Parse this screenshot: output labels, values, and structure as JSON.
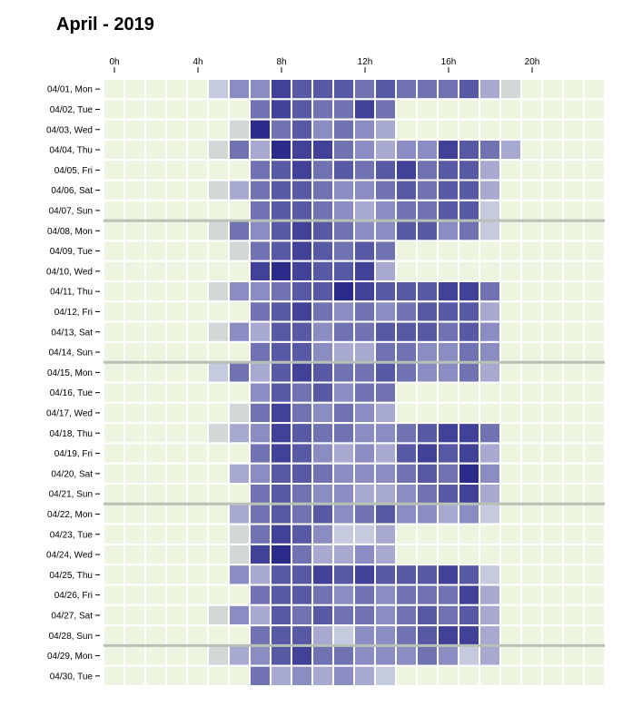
{
  "title": "April - 2019",
  "colors": {
    "empty": "#edf5e1",
    "scale": [
      "#d2d8d8",
      "#c6cadf",
      "#a7a9d1",
      "#8b8dc2",
      "#7072b1",
      "#5759a4",
      "#414297",
      "#2b2c8a",
      "#1b1a7e"
    ],
    "week_separator": "#b9c1b7",
    "grid_line": "#ffffff"
  },
  "chart_data": {
    "type": "heatmap",
    "title": "April - 2019",
    "x_tick_labels": [
      "0h",
      "4h",
      "8h",
      "12h",
      "16h",
      "20h"
    ],
    "x_tick_hours": [
      0,
      4,
      8,
      12,
      16,
      20
    ],
    "hours": [
      0,
      1,
      2,
      3,
      4,
      5,
      6,
      7,
      8,
      9,
      10,
      11,
      12,
      13,
      14,
      15,
      16,
      17,
      18,
      19,
      20,
      21,
      22,
      23
    ],
    "y_labels": [
      "04/01, Mon",
      "04/02, Tue",
      "04/03, Wed",
      "04/04, Thu",
      "04/05, Fri",
      "04/06, Sat",
      "04/07, Sun",
      "04/08, Mon",
      "04/09, Tue",
      "04/10, Wed",
      "04/11, Thu",
      "04/12, Fri",
      "04/13, Sat",
      "04/14, Sun",
      "04/15, Mon",
      "04/16, Tue",
      "04/17, Wed",
      "04/18, Thu",
      "04/19, Fri",
      "04/20, Sat",
      "04/21, Sun",
      "04/22, Mon",
      "04/23, Tue",
      "04/24, Wed",
      "04/25, Thu",
      "04/26, Fri",
      "04/27, Sat",
      "04/28, Sun",
      "04/29, Mon",
      "04/30, Tue"
    ],
    "week_separators_after_rows": [
      6,
      13,
      20,
      27
    ],
    "value_range": [
      0,
      9
    ],
    "values": [
      [
        0,
        0,
        0,
        0,
        0,
        2,
        4,
        4,
        7,
        6,
        6,
        6,
        5,
        6,
        5,
        5,
        5,
        6,
        3,
        1,
        0,
        0,
        0,
        0
      ],
      [
        0,
        0,
        0,
        0,
        0,
        0,
        0,
        5,
        7,
        6,
        5,
        5,
        7,
        5,
        0,
        0,
        0,
        0,
        0,
        0,
        0,
        0,
        0,
        0
      ],
      [
        0,
        0,
        0,
        0,
        0,
        0,
        1,
        8,
        5,
        6,
        4,
        5,
        4,
        3,
        0,
        0,
        0,
        0,
        0,
        0,
        0,
        0,
        0,
        0
      ],
      [
        0,
        0,
        0,
        0,
        0,
        1,
        5,
        3,
        8,
        7,
        7,
        5,
        4,
        3,
        4,
        4,
        7,
        6,
        5,
        3,
        0,
        0,
        0,
        0
      ],
      [
        0,
        0,
        0,
        0,
        0,
        0,
        0,
        5,
        6,
        7,
        5,
        6,
        5,
        6,
        7,
        5,
        6,
        6,
        3,
        0,
        0,
        0,
        0,
        0
      ],
      [
        0,
        0,
        0,
        0,
        0,
        1,
        3,
        5,
        6,
        6,
        5,
        4,
        4,
        5,
        6,
        5,
        6,
        6,
        3,
        0,
        0,
        0,
        0,
        0
      ],
      [
        0,
        0,
        0,
        0,
        0,
        0,
        0,
        5,
        6,
        6,
        5,
        4,
        3,
        4,
        5,
        5,
        6,
        6,
        2,
        0,
        0,
        0,
        0,
        0
      ],
      [
        0,
        0,
        0,
        0,
        0,
        1,
        5,
        4,
        6,
        7,
        6,
        5,
        4,
        4,
        6,
        6,
        4,
        5,
        2,
        0,
        0,
        0,
        0,
        0
      ],
      [
        0,
        0,
        0,
        0,
        0,
        0,
        1,
        5,
        6,
        7,
        6,
        5,
        6,
        5,
        0,
        0,
        0,
        0,
        0,
        0,
        0,
        0,
        0,
        0
      ],
      [
        0,
        0,
        0,
        0,
        0,
        0,
        0,
        7,
        8,
        7,
        6,
        6,
        7,
        3,
        0,
        0,
        0,
        0,
        0,
        0,
        0,
        0,
        0,
        0
      ],
      [
        0,
        0,
        0,
        0,
        0,
        1,
        4,
        4,
        5,
        6,
        6,
        8,
        7,
        6,
        6,
        6,
        7,
        7,
        5,
        0,
        0,
        0,
        0,
        0
      ],
      [
        0,
        0,
        0,
        0,
        0,
        0,
        0,
        5,
        6,
        7,
        5,
        4,
        5,
        4,
        5,
        6,
        6,
        6,
        3,
        0,
        0,
        0,
        0,
        0
      ],
      [
        0,
        0,
        0,
        0,
        0,
        1,
        4,
        3,
        6,
        6,
        4,
        5,
        5,
        6,
        6,
        6,
        5,
        6,
        4,
        0,
        0,
        0,
        0,
        0
      ],
      [
        0,
        0,
        0,
        0,
        0,
        0,
        0,
        5,
        6,
        6,
        4,
        3,
        3,
        5,
        5,
        4,
        4,
        5,
        4,
        0,
        0,
        0,
        0,
        0
      ],
      [
        0,
        0,
        0,
        0,
        0,
        2,
        5,
        3,
        6,
        7,
        6,
        5,
        5,
        6,
        5,
        4,
        4,
        5,
        3,
        0,
        0,
        0,
        0,
        0
      ],
      [
        0,
        0,
        0,
        0,
        0,
        0,
        0,
        4,
        6,
        5,
        6,
        4,
        5,
        5,
        0,
        0,
        0,
        0,
        0,
        0,
        0,
        0,
        0,
        0
      ],
      [
        0,
        0,
        0,
        0,
        0,
        0,
        1,
        5,
        7,
        5,
        4,
        5,
        4,
        3,
        0,
        0,
        0,
        0,
        0,
        0,
        0,
        0,
        0,
        0
      ],
      [
        0,
        0,
        0,
        0,
        0,
        1,
        3,
        4,
        7,
        6,
        5,
        5,
        4,
        4,
        5,
        6,
        7,
        7,
        5,
        0,
        0,
        0,
        0,
        0
      ],
      [
        0,
        0,
        0,
        0,
        0,
        0,
        0,
        5,
        7,
        6,
        4,
        3,
        4,
        3,
        6,
        7,
        6,
        7,
        3,
        0,
        0,
        0,
        0,
        0
      ],
      [
        0,
        0,
        0,
        0,
        0,
        0,
        3,
        4,
        6,
        6,
        5,
        4,
        4,
        4,
        5,
        6,
        5,
        8,
        4,
        0,
        0,
        0,
        0,
        0
      ],
      [
        0,
        0,
        0,
        0,
        0,
        0,
        0,
        5,
        6,
        5,
        4,
        4,
        3,
        3,
        4,
        5,
        6,
        7,
        3,
        0,
        0,
        0,
        0,
        0
      ],
      [
        0,
        0,
        0,
        0,
        0,
        0,
        3,
        5,
        6,
        5,
        6,
        4,
        5,
        6,
        4,
        4,
        3,
        4,
        2,
        0,
        0,
        0,
        0,
        0
      ],
      [
        0,
        0,
        0,
        0,
        0,
        0,
        1,
        5,
        7,
        6,
        4,
        2,
        2,
        3,
        0,
        0,
        0,
        0,
        0,
        0,
        0,
        0,
        0,
        0
      ],
      [
        0,
        0,
        0,
        0,
        0,
        0,
        1,
        7,
        8,
        5,
        3,
        3,
        4,
        3,
        0,
        0,
        0,
        0,
        0,
        0,
        0,
        0,
        0,
        0
      ],
      [
        0,
        0,
        0,
        0,
        0,
        0,
        4,
        3,
        6,
        6,
        7,
        6,
        7,
        6,
        6,
        6,
        7,
        6,
        2,
        0,
        0,
        0,
        0,
        0
      ],
      [
        0,
        0,
        0,
        0,
        0,
        0,
        0,
        5,
        6,
        6,
        5,
        4,
        5,
        4,
        5,
        5,
        5,
        7,
        3,
        0,
        0,
        0,
        0,
        0
      ],
      [
        0,
        0,
        0,
        0,
        0,
        1,
        4,
        3,
        6,
        5,
        6,
        5,
        5,
        4,
        5,
        6,
        5,
        6,
        3,
        0,
        0,
        0,
        0,
        0
      ],
      [
        0,
        0,
        0,
        0,
        0,
        0,
        0,
        5,
        6,
        6,
        3,
        2,
        4,
        4,
        5,
        6,
        7,
        7,
        3,
        0,
        0,
        0,
        0,
        0
      ],
      [
        0,
        0,
        0,
        0,
        0,
        1,
        3,
        4,
        6,
        7,
        5,
        5,
        4,
        4,
        4,
        5,
        4,
        2,
        3,
        0,
        0,
        0,
        0,
        0
      ],
      [
        0,
        0,
        0,
        0,
        0,
        0,
        0,
        5,
        3,
        4,
        3,
        4,
        3,
        2,
        0,
        0,
        0,
        0,
        0,
        0,
        0,
        0,
        0,
        0
      ]
    ],
    "xlabel": "",
    "ylabel": "",
    "legend": "none",
    "grid": true
  }
}
